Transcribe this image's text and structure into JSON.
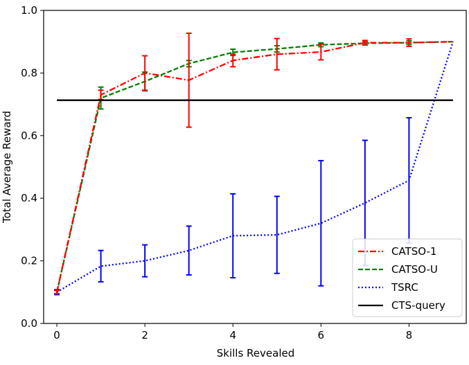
{
  "chart_data": {
    "type": "line",
    "xlabel": "Skills Revealed",
    "ylabel": "Total Average Reward",
    "xlim": [
      -0.3,
      9.3
    ],
    "ylim": [
      0.0,
      1.0
    ],
    "xticks": [
      0,
      2,
      4,
      6,
      8
    ],
    "xtick_labels": [
      "0",
      "2",
      "4",
      "6",
      "8"
    ],
    "yticks": [
      0.0,
      0.2,
      0.4,
      0.6,
      0.8,
      1.0
    ],
    "ytick_labels": [
      "0.0",
      "0.2",
      "0.4",
      "0.6",
      "0.8",
      "1.0"
    ],
    "grid": false,
    "legend_position": "lower-right",
    "x": [
      0,
      1,
      2,
      3,
      4,
      5,
      6,
      7,
      8,
      9
    ],
    "series": [
      {
        "name": "CATSO-1",
        "color": "#ff0000",
        "style": "dashdot",
        "values": [
          0.1,
          0.73,
          0.8,
          0.777,
          0.84,
          0.86,
          0.867,
          0.897,
          0.897,
          0.9
        ],
        "errors": [
          0.005,
          0.015,
          0.055,
          0.15,
          0.02,
          0.05,
          0.025,
          0.007,
          0.012,
          0.0
        ]
      },
      {
        "name": "CATSO-U",
        "color": "#008000",
        "style": "dashed",
        "values": [
          0.1,
          0.72,
          0.773,
          0.83,
          0.866,
          0.877,
          0.89,
          0.895,
          0.897,
          0.9
        ],
        "errors": [
          0.005,
          0.035,
          0.03,
          0.01,
          0.01,
          0.01,
          0.006,
          0.006,
          0.006,
          0.0
        ]
      },
      {
        "name": "TSRC",
        "color": "#0000ff",
        "style": "dotted",
        "values": [
          0.1,
          0.183,
          0.2,
          0.233,
          0.28,
          0.283,
          0.32,
          0.385,
          0.457,
          0.9
        ],
        "errors": [
          0.008,
          0.05,
          0.051,
          0.078,
          0.134,
          0.123,
          0.2,
          0.2,
          0.2,
          0.0
        ]
      },
      {
        "name": "CTS-query",
        "color": "#000000",
        "style": "solid",
        "values": [
          0.713,
          0.713,
          0.713,
          0.713,
          0.713,
          0.713,
          0.713,
          0.713,
          0.713,
          0.713
        ]
      }
    ]
  }
}
